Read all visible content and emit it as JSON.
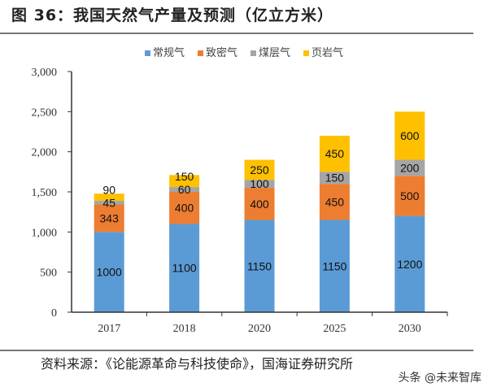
{
  "title": "图 36：我国天然气产量及预测（亿立方米）",
  "source": "资料来源：《论能源革命与科技使命》，国海证券研究所",
  "watermark": "头条 @未来智库",
  "chart_data": {
    "type": "bar",
    "stacked": true,
    "categories": [
      "2017",
      "2018",
      "2020",
      "2025",
      "2030"
    ],
    "series": [
      {
        "name": "常规气",
        "color": "#5B9BD5",
        "values": [
          1000,
          1100,
          1150,
          1150,
          1200
        ]
      },
      {
        "name": "致密气",
        "color": "#ED7D31",
        "values": [
          343,
          400,
          400,
          450,
          500
        ]
      },
      {
        "name": "煤层气",
        "color": "#A5A5A5",
        "values": [
          45,
          60,
          100,
          150,
          200
        ]
      },
      {
        "name": "页岩气",
        "color": "#FFC000",
        "values": [
          90,
          150,
          250,
          450,
          600
        ]
      }
    ],
    "ylim": [
      0,
      3000
    ],
    "yticks": [
      0,
      500,
      1000,
      1500,
      2000,
      2500,
      3000
    ],
    "ytick_labels": [
      "0",
      "500",
      "1,000",
      "1,500",
      "2,000",
      "2,500",
      "3,000"
    ],
    "legend": "top",
    "grid": false
  }
}
